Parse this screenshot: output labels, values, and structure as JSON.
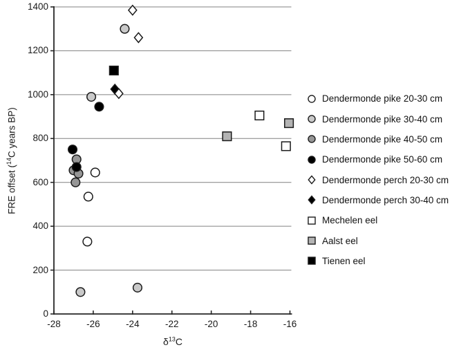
{
  "figure": {
    "ylabel_prefix": "FRE offset (",
    "ylabel_sup": "14",
    "ylabel_suffix": "C years BP)",
    "xlabel_prefix": "δ",
    "xlabel_sup": "13",
    "xlabel_suffix": "C"
  },
  "chart_data": {
    "type": "scatter",
    "title": "",
    "xlabel": "δ13C",
    "ylabel": "FRE offset (14C years BP)",
    "xlim": [
      -28,
      -16
    ],
    "ylim": [
      0,
      1400
    ],
    "x_ticks": [
      -28,
      -26,
      -24,
      -22,
      -20,
      -18,
      -16
    ],
    "y_ticks": [
      0,
      200,
      400,
      600,
      800,
      1000,
      1200,
      1400
    ],
    "grid": "horizontal",
    "legend_position": "right",
    "colors": {
      "gridline": "#808080",
      "axis": "#262626",
      "marker_stroke": "#1a1a1a",
      "white_fill": "#ffffff",
      "light_gray_fill": "#c9c9c9",
      "dark_gray_fill": "#969696",
      "medium_gray_fill": "#b4b4b4",
      "black_fill": "#000000"
    },
    "series": [
      {
        "name": "Dendermonde pike 20-30 cm",
        "marker": "circle",
        "fill": "#ffffff",
        "z": 6,
        "points": [
          [
            -25.9,
            645
          ],
          [
            -26.25,
            535
          ],
          [
            -26.3,
            330
          ]
        ]
      },
      {
        "name": "Dendermonde pike 30-40 cm",
        "marker": "circle",
        "fill": "#c9c9c9",
        "z": 1,
        "points": [
          [
            -24.4,
            1300
          ],
          [
            -26.1,
            990
          ],
          [
            -26.65,
            100
          ],
          [
            -23.75,
            120
          ]
        ]
      },
      {
        "name": "Dendermonde pike 40-50 cm",
        "marker": "circle",
        "fill": "#969696",
        "z": 2,
        "points": [
          [
            -26.85,
            705
          ],
          [
            -27.0,
            655
          ],
          [
            -26.75,
            640
          ],
          [
            -26.9,
            600
          ]
        ]
      },
      {
        "name": "Dendermonde pike 50-60 cm",
        "marker": "circle",
        "fill": "#000000",
        "z": 3,
        "points": [
          [
            -27.05,
            750
          ],
          [
            -26.85,
            670
          ],
          [
            -25.7,
            945
          ]
        ]
      },
      {
        "name": "Dendermonde perch 20-30 cm",
        "marker": "diamond",
        "fill": "#ffffff",
        "z": 5,
        "points": [
          [
            -24.0,
            1385
          ],
          [
            -23.7,
            1260
          ],
          [
            -24.7,
            1005
          ]
        ]
      },
      {
        "name": "Dendermonde perch 30-40 cm",
        "marker": "diamond",
        "fill": "#000000",
        "z": 4,
        "points": [
          [
            -24.9,
            1025
          ]
        ]
      },
      {
        "name": "Mechelen eel",
        "marker": "square",
        "fill": "#ffffff",
        "z": 7,
        "points": [
          [
            -17.55,
            905
          ],
          [
            -16.2,
            765
          ]
        ]
      },
      {
        "name": "Aalst eel",
        "marker": "square",
        "fill": "#b4b4b4",
        "z": 8,
        "points": [
          [
            -19.2,
            810
          ],
          [
            -16.05,
            870
          ]
        ]
      },
      {
        "name": "Tienen eel",
        "marker": "square",
        "fill": "#000000",
        "z": 9,
        "points": [
          [
            -24.95,
            1110
          ]
        ]
      }
    ]
  }
}
